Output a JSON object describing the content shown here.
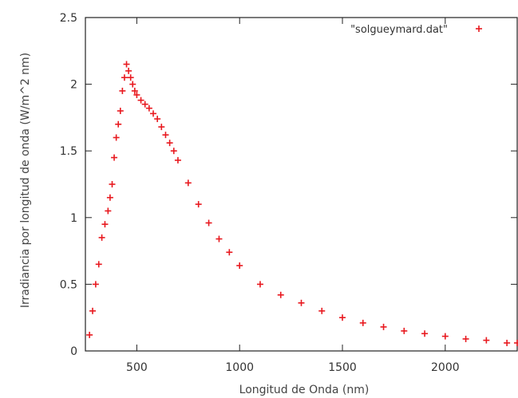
{
  "chart_data": {
    "type": "scatter",
    "title": "",
    "xlabel": "Longitud de Onda (nm)",
    "ylabel": "Irradiancia por longitud de onda (W/m^2 nm)",
    "xlim": [
      250,
      2350
    ],
    "ylim": [
      0,
      2.5
    ],
    "x_ticks": [
      "500",
      "1000",
      "1500",
      "2000"
    ],
    "x_tick_values": [
      500,
      1000,
      1500,
      2000
    ],
    "y_ticks": [
      "0",
      "0.5",
      "1",
      "1.5",
      "2",
      "2.5"
    ],
    "y_tick_values": [
      0,
      0.5,
      1,
      1.5,
      2,
      2.5
    ],
    "grid": false,
    "legend_position": "top-right",
    "marker": "plus",
    "series": [
      {
        "name": "\"solgueymard.dat\"",
        "color": "#e8191f",
        "x": [
          270,
          285,
          300,
          315,
          330,
          345,
          360,
          370,
          380,
          390,
          400,
          410,
          420,
          430,
          440,
          450,
          460,
          470,
          480,
          490,
          500,
          520,
          540,
          560,
          580,
          600,
          620,
          640,
          660,
          680,
          700,
          750,
          800,
          850,
          900,
          950,
          1000,
          1100,
          1200,
          1300,
          1400,
          1500,
          1600,
          1700,
          1800,
          1900,
          2000,
          2100,
          2200,
          2300,
          2350
        ],
        "y": [
          0.12,
          0.3,
          0.5,
          0.65,
          0.85,
          0.95,
          1.05,
          1.15,
          1.25,
          1.45,
          1.6,
          1.7,
          1.8,
          1.95,
          2.05,
          2.15,
          2.1,
          2.05,
          2.0,
          1.95,
          1.92,
          1.88,
          1.85,
          1.82,
          1.78,
          1.74,
          1.68,
          1.62,
          1.56,
          1.5,
          1.43,
          1.26,
          1.1,
          0.96,
          0.84,
          0.74,
          0.64,
          0.5,
          0.42,
          0.36,
          0.3,
          0.25,
          0.21,
          0.18,
          0.15,
          0.13,
          0.11,
          0.09,
          0.08,
          0.06,
          0.06
        ]
      }
    ]
  }
}
